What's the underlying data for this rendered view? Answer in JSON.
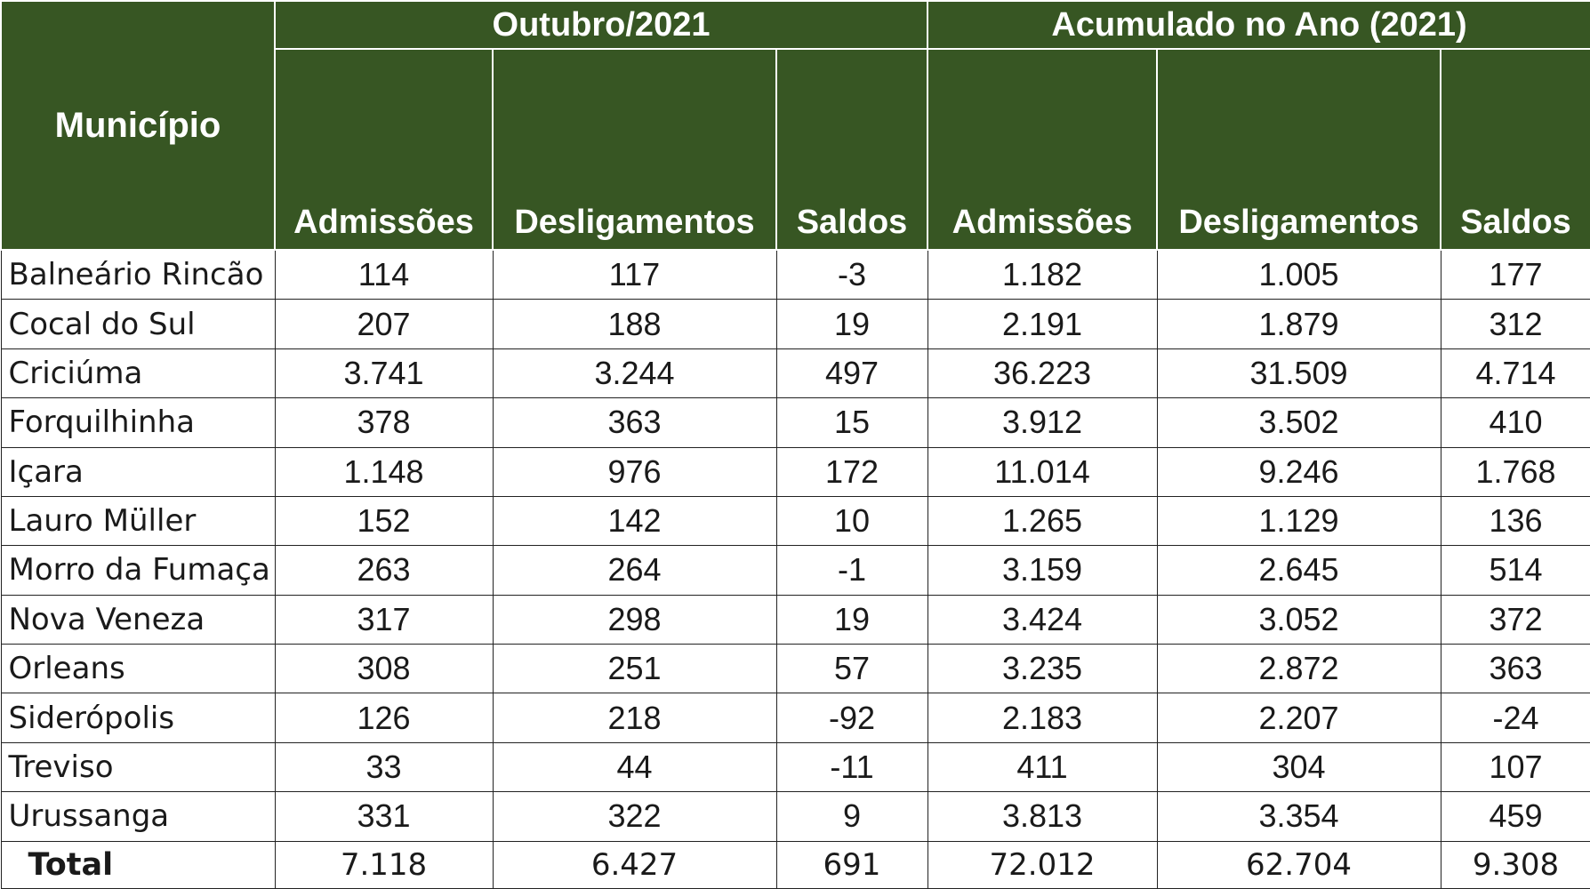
{
  "header": {
    "municipio": "Município",
    "groups": [
      "Outubro/2021",
      "Acumulado no Ano (2021)"
    ],
    "columns": [
      "Admissões",
      "Desligamentos",
      "Saldos",
      "Admissões",
      "Desligamentos",
      "Saldos"
    ]
  },
  "rows": [
    {
      "municipio": "Balneário Rincão",
      "values": [
        "114",
        "117",
        "-3",
        "1.182",
        "1.005",
        "177"
      ]
    },
    {
      "municipio": "Cocal do Sul",
      "values": [
        "207",
        "188",
        "19",
        "2.191",
        "1.879",
        "312"
      ]
    },
    {
      "municipio": "Criciúma",
      "values": [
        "3.741",
        "3.244",
        "497",
        "36.223",
        "31.509",
        "4.714"
      ]
    },
    {
      "municipio": "Forquilhinha",
      "values": [
        "378",
        "363",
        "15",
        "3.912",
        "3.502",
        "410"
      ]
    },
    {
      "municipio": "Içara",
      "values": [
        "1.148",
        "976",
        "172",
        "11.014",
        "9.246",
        "1.768"
      ]
    },
    {
      "municipio": "Lauro Müller",
      "values": [
        "152",
        "142",
        "10",
        "1.265",
        "1.129",
        "136"
      ]
    },
    {
      "municipio": "Morro da Fumaça",
      "values": [
        "263",
        "264",
        "-1",
        "3.159",
        "2.645",
        "514"
      ]
    },
    {
      "municipio": "Nova Veneza",
      "values": [
        "317",
        "298",
        "19",
        "3.424",
        "3.052",
        "372"
      ]
    },
    {
      "municipio": "Orleans",
      "values": [
        "308",
        "251",
        "57",
        "3.235",
        "2.872",
        "363"
      ]
    },
    {
      "municipio": "Siderópolis",
      "values": [
        "126",
        "218",
        "-92",
        "2.183",
        "2.207",
        "-24"
      ]
    },
    {
      "municipio": "Treviso",
      "values": [
        "33",
        "44",
        "-11",
        "411",
        "304",
        "107"
      ]
    },
    {
      "municipio": "Urussanga",
      "values": [
        "331",
        "322",
        "9",
        "3.813",
        "3.354",
        "459"
      ]
    }
  ],
  "total": {
    "label": "Total",
    "values": [
      "7.118",
      "6.427",
      "691",
      "72.012",
      "62.704",
      "9.308"
    ]
  },
  "colors": {
    "header_bg": "#375623",
    "header_text": "#ffffff",
    "border": "#222222"
  }
}
